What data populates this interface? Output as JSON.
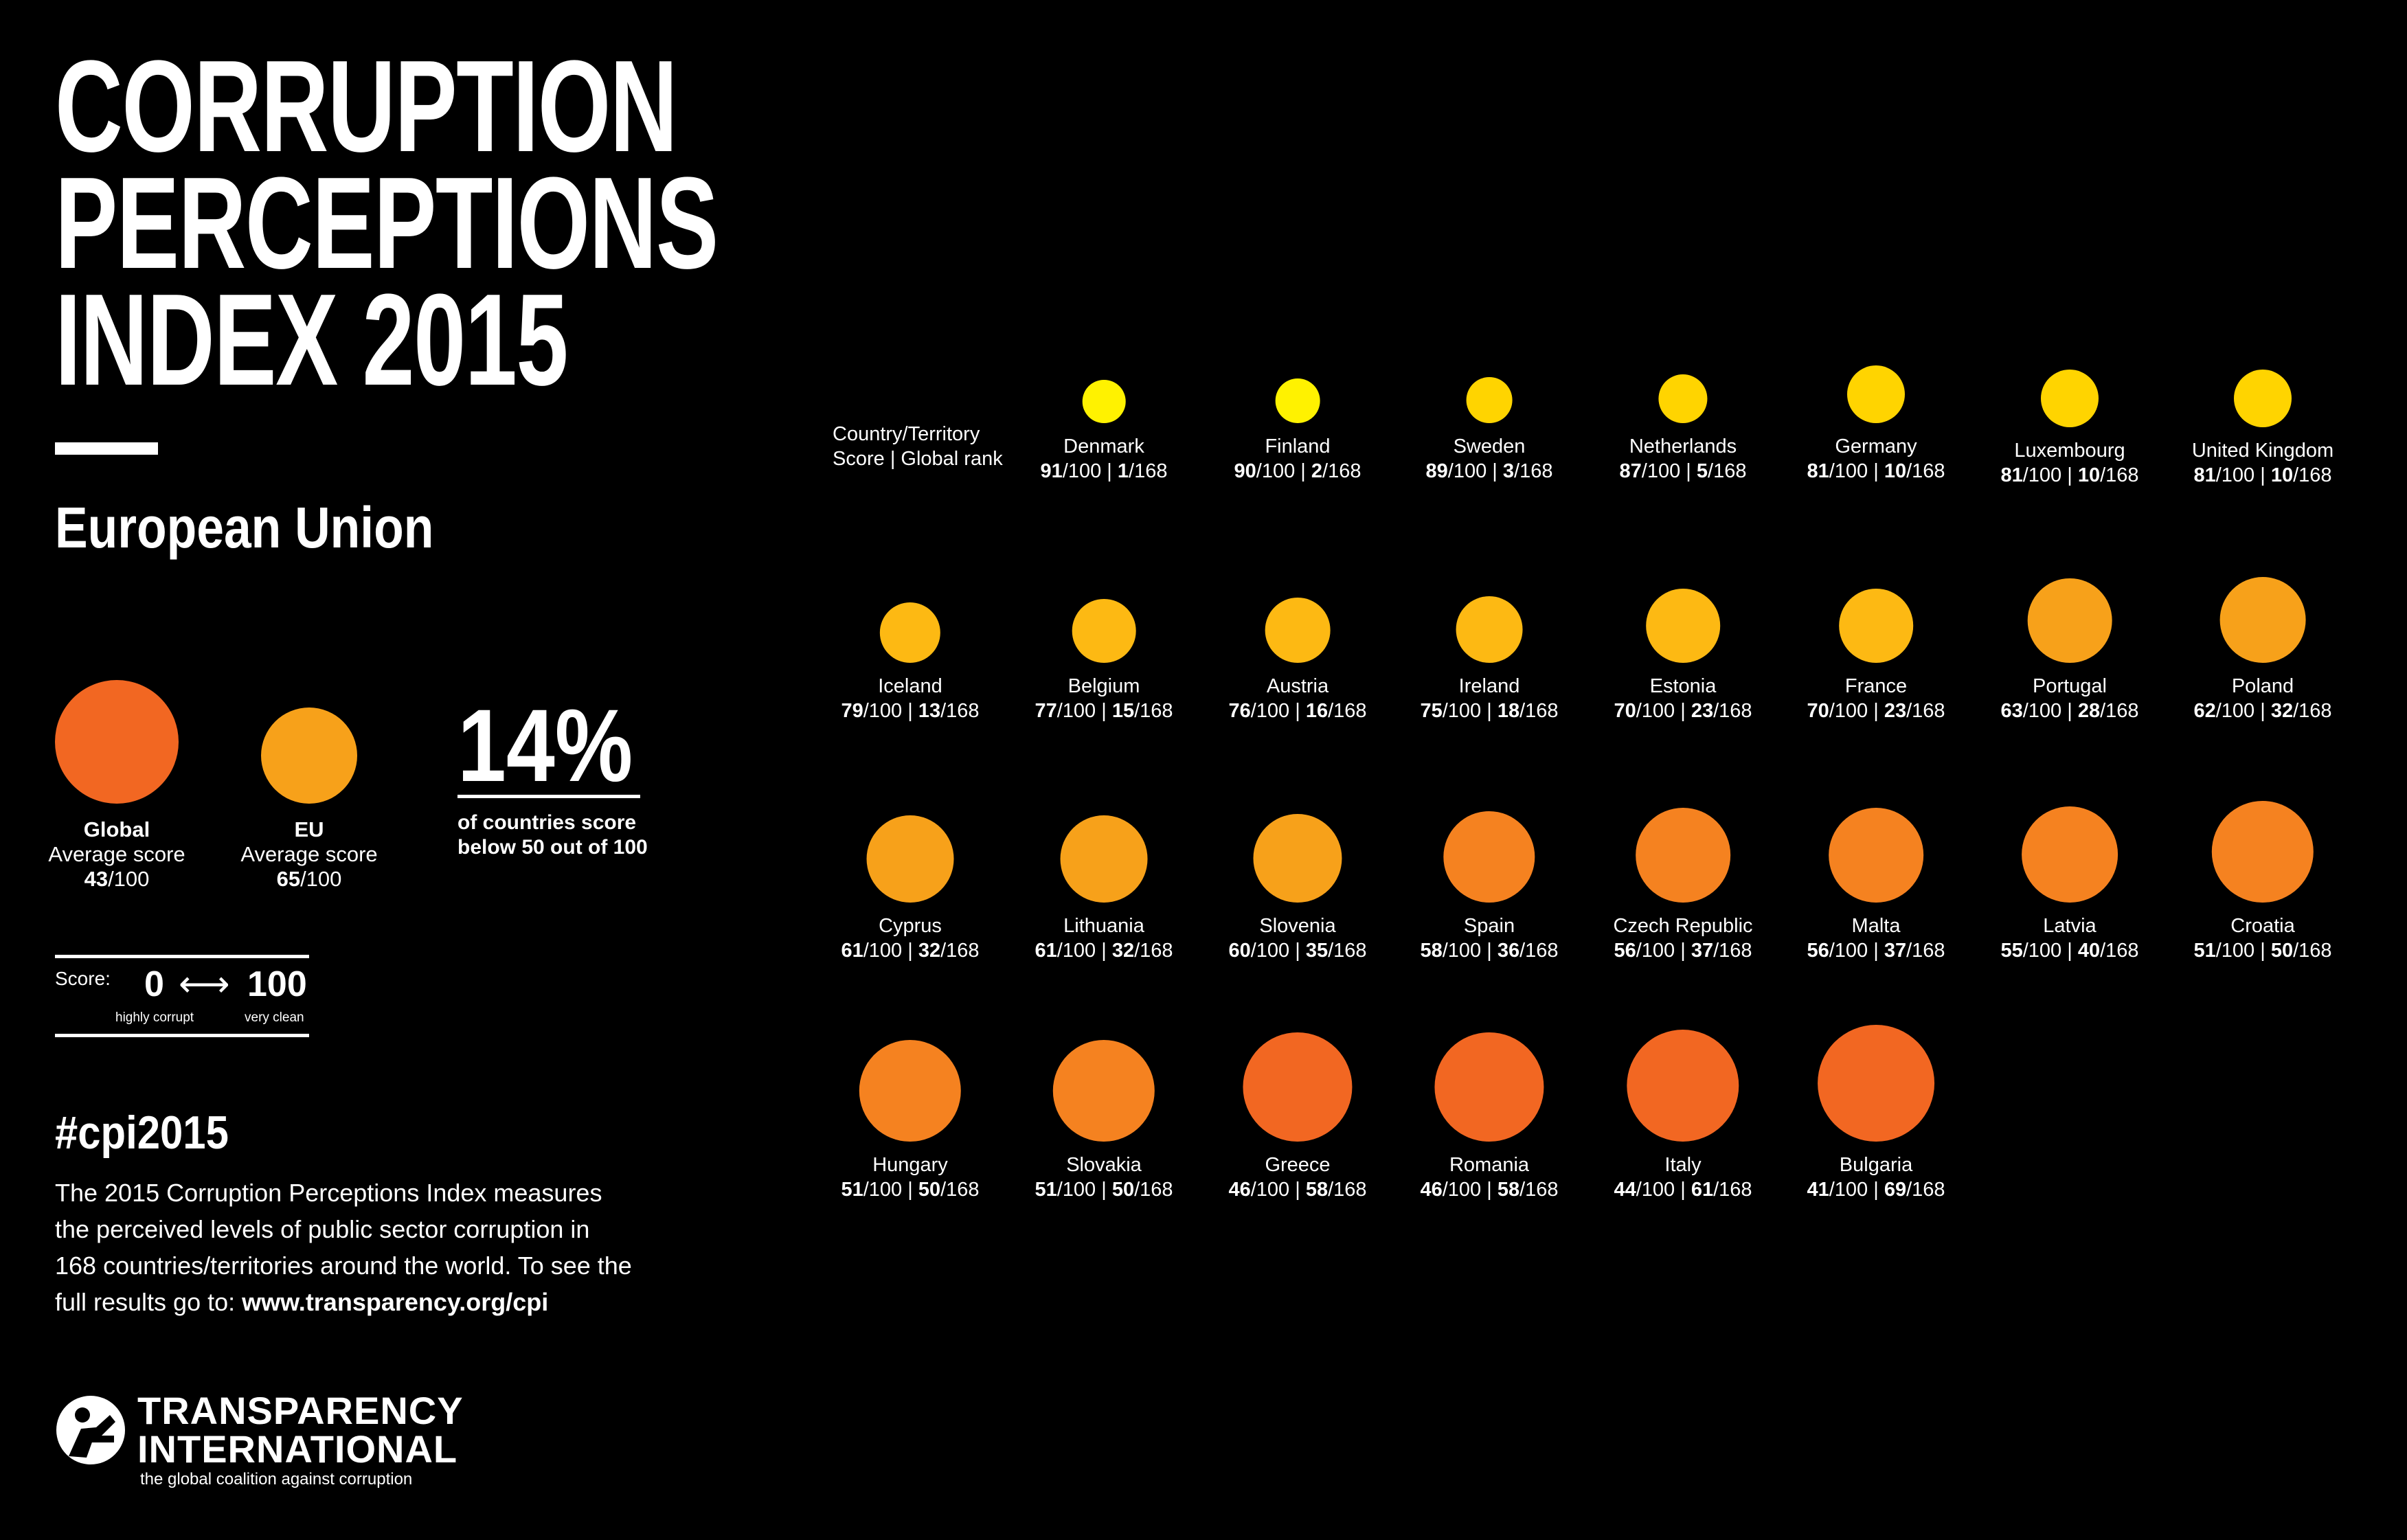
{
  "title": {
    "line1": "CORRUPTION",
    "line2": "PERCEPTIONS",
    "line3": "INDEX 2015"
  },
  "region": "European Union",
  "averages": [
    {
      "label": "Global",
      "sub": "Average score",
      "score": "43",
      "max": "/100",
      "color": "#F26722"
    },
    {
      "label": "EU",
      "sub": "Average score",
      "score": "65",
      "max": "/100",
      "color": "#F7A11A"
    }
  ],
  "stat": {
    "value": "14%",
    "caption_line1": "of countries score",
    "caption_line2": "below 50 out of 100"
  },
  "legend": {
    "label": "Score:",
    "min": "0",
    "max": "100",
    "min_desc": "highly corrupt",
    "max_desc": "very clean",
    "arrow": "⟷"
  },
  "hashtag": "#cpi2015",
  "description": {
    "line1": "The 2015 Corruption Perceptions Index measures",
    "line2": "the perceived levels of public sector corruption in",
    "line3": "168 countries/territories around the world. To see the",
    "line4_prefix": "full results go to: ",
    "link": "www.transparency.org/cpi"
  },
  "logo": {
    "line1": "TRANSPARENCY",
    "line2": "INTERNATIONAL",
    "tagline": "the global coalition against corruption"
  },
  "table_header": {
    "line1": "Country/Territory",
    "line2": "Score | Global rank"
  },
  "chart_data": {
    "type": "bubble-grid",
    "max_score": "100",
    "total_countries": "168",
    "colors": {
      "90s": "#FFF200",
      "80s": "#FFD400",
      "70s": "#FDB913",
      "60s": "#F7A11A",
      "50s": "#F58220",
      "40s": "#F26722"
    },
    "countries": [
      {
        "name": "Denmark",
        "score": 91,
        "rank": 1
      },
      {
        "name": "Finland",
        "score": 90,
        "rank": 2
      },
      {
        "name": "Sweden",
        "score": 89,
        "rank": 3
      },
      {
        "name": "Netherlands",
        "score": 87,
        "rank": 5
      },
      {
        "name": "Germany",
        "score": 81,
        "rank": 10
      },
      {
        "name": "Luxembourg",
        "score": 81,
        "rank": 10
      },
      {
        "name": "United Kingdom",
        "score": 81,
        "rank": 10
      },
      {
        "name": "Iceland",
        "score": 79,
        "rank": 13
      },
      {
        "name": "Belgium",
        "score": 77,
        "rank": 15
      },
      {
        "name": "Austria",
        "score": 76,
        "rank": 16
      },
      {
        "name": "Ireland",
        "score": 75,
        "rank": 18
      },
      {
        "name": "Estonia",
        "score": 70,
        "rank": 23
      },
      {
        "name": "France",
        "score": 70,
        "rank": 23
      },
      {
        "name": "Portugal",
        "score": 63,
        "rank": 28
      },
      {
        "name": "Poland",
        "score": 62,
        "rank": 32
      },
      {
        "name": "Cyprus",
        "score": 61,
        "rank": 32
      },
      {
        "name": "Lithuania",
        "score": 61,
        "rank": 32
      },
      {
        "name": "Slovenia",
        "score": 60,
        "rank": 35
      },
      {
        "name": "Spain",
        "score": 58,
        "rank": 36
      },
      {
        "name": "Czech Republic",
        "score": 56,
        "rank": 37
      },
      {
        "name": "Malta",
        "score": 56,
        "rank": 37
      },
      {
        "name": "Latvia",
        "score": 55,
        "rank": 40
      },
      {
        "name": "Croatia",
        "score": 51,
        "rank": 50
      },
      {
        "name": "Hungary",
        "score": 51,
        "rank": 50
      },
      {
        "name": "Slovakia",
        "score": 51,
        "rank": 50
      },
      {
        "name": "Greece",
        "score": 46,
        "rank": 58
      },
      {
        "name": "Romania",
        "score": 46,
        "rank": 58
      },
      {
        "name": "Italy",
        "score": 44,
        "rank": 61
      },
      {
        "name": "Bulgaria",
        "score": 41,
        "rank": 69
      }
    ]
  }
}
